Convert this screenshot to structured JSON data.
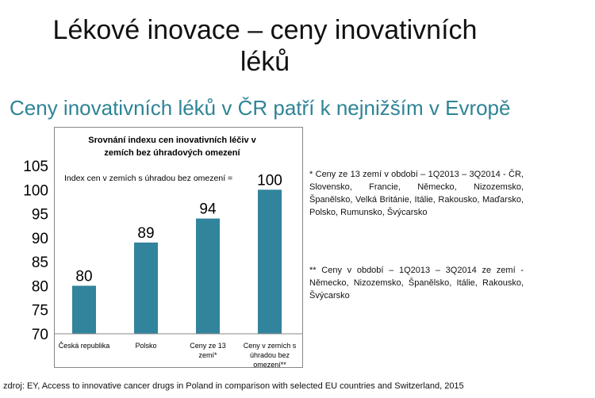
{
  "slide": {
    "title_line1": "Lékové inovace – ceny inovativních",
    "title_line2": "léků",
    "subtitle": "Ceny inovativních léků v ČR patří k nejnižším v Evropě"
  },
  "notes": {
    "note1": "* Ceny ze 13 zemí v období – 1Q2013 – 3Q2014 - ČR, Slovensko, Francie, Německo, Nizozemsko, Španělsko, Velká Británie, Itálie, Rakousko, Maďarsko, Polsko, Rumunsko, Švýcarsko",
    "note2": "** Ceny v období – 1Q2013 – 3Q2014 ze zemí - Německo, Nizozemsko, Španělsko, Itálie, Rakousko, Švýcarsko"
  },
  "source": "zdroj: EY, Access to innovative cancer drugs in Poland in comparison with selected EU countries and Switzerland, 2015",
  "chart_data": {
    "type": "bar",
    "title_line1": "Srovnání indexu cen inovativních léčiv v",
    "title_line2": "zemích bez úhradových omezení",
    "annotation": "Index  cen v zemích s úhradou bez omezení =",
    "categories": [
      [
        "Česká republika"
      ],
      [
        "Polsko"
      ],
      [
        "Ceny ze 13",
        "zemí*"
      ],
      [
        "Ceny v zemích s",
        "úhradou bez",
        "omezení**"
      ]
    ],
    "values": [
      80,
      89,
      94,
      100
    ],
    "ylim": [
      70,
      105
    ],
    "yticks": [
      70,
      75,
      80,
      85,
      90,
      95,
      100,
      105
    ],
    "bar_color": "#31849b",
    "grid": false
  }
}
